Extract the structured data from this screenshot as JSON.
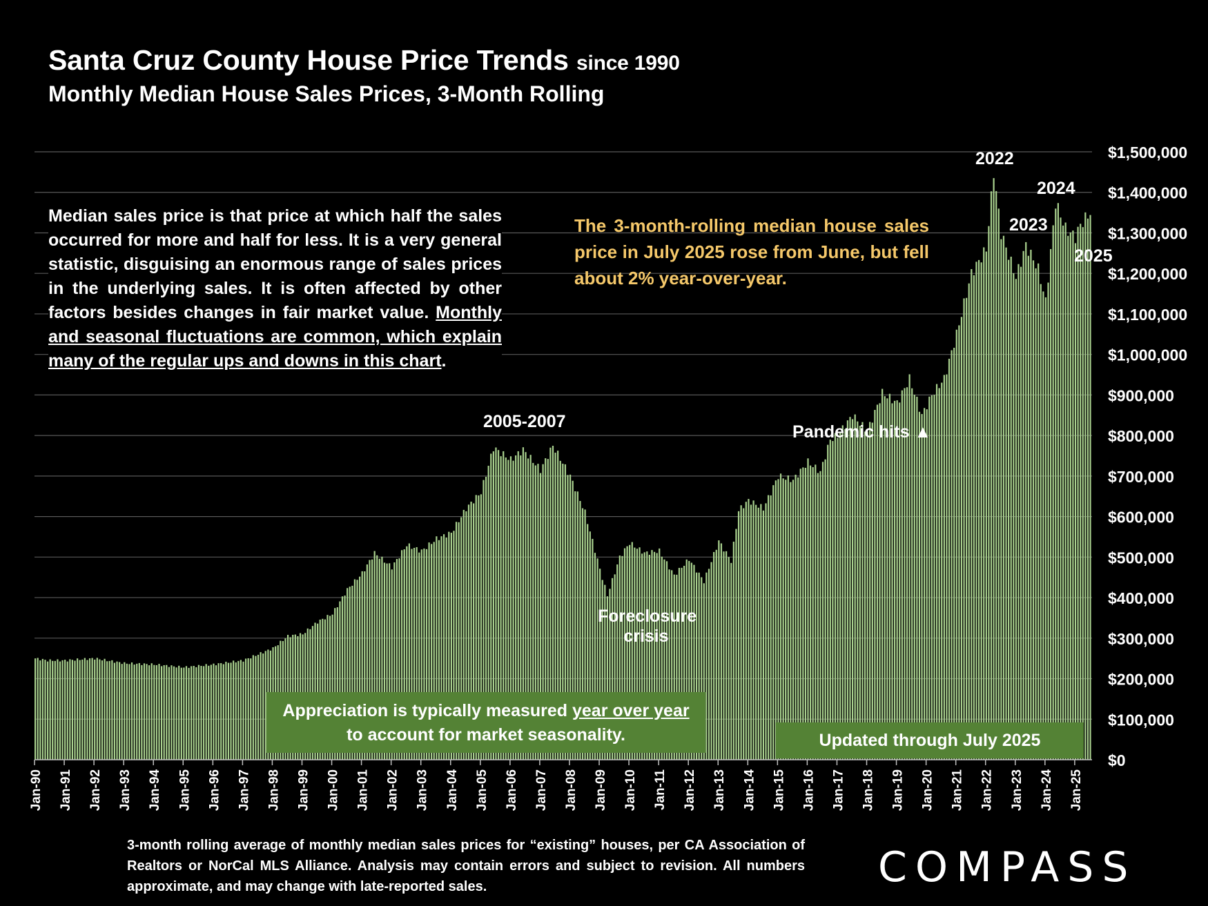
{
  "header": {
    "title": "Santa Cruz County House Price Trends",
    "title_suffix": "since 1990",
    "subtitle": "Monthly Median House Sales Prices, 3-Month Rolling"
  },
  "explanation": {
    "text": "Median sales price is that price at which half the sales occurred for more and half for less. It is a very general statistic, disguising an enormous range of sales prices in the underlying sales. It is often affected by other factors besides changes in fair market value.",
    "underlined": "Monthly and seasonal fluctuations are common, which explain many of the regular ups and downs in this chart",
    "end": "."
  },
  "callout": "The 3-month-rolling median house sales price in July 2025 rose from June, but fell about 2% year-over-year.",
  "boxes": {
    "appreciation_pre": "Appreciation is typically measured ",
    "appreciation_u": "year over year",
    "appreciation_post": "to account for market seasonality.",
    "updated": "Updated through July 2025"
  },
  "footnote": "3-month rolling average of monthly median sales prices for “existing” houses, per CA Association of Realtors or NorCal MLS Alliance. Analysis may contain errors and subject to revision. All numbers approximate, and may change with late-reported sales.",
  "logo": "COMPASS",
  "colors": {
    "bar": "#a9d18e",
    "bar_edge": "#70ad47",
    "box": "#548235",
    "callout": "#f5c86a",
    "grid": "#595959"
  },
  "chart_data": {
    "type": "bar",
    "title": "Santa Cruz County House Price Trends since 1990",
    "xlabel": "",
    "ylabel": "",
    "ylim": [
      0,
      1500000
    ],
    "y_ticks": [
      0,
      100000,
      200000,
      300000,
      400000,
      500000,
      600000,
      700000,
      800000,
      900000,
      1000000,
      1100000,
      1200000,
      1300000,
      1400000,
      1500000
    ],
    "y_tick_labels": [
      "$0",
      "$100,000",
      "$200,000",
      "$300,000",
      "$400,000",
      "$500,000",
      "$600,000",
      "$700,000",
      "$800,000",
      "$900,000",
      "$1,000,000",
      "$1,100,000",
      "$1,200,000",
      "$1,300,000",
      "$1,400,000",
      "$1,500,000"
    ],
    "x_tick_labels": [
      "Jan-90",
      "Jan-91",
      "Jan-92",
      "Jan-93",
      "Jan-94",
      "Jan-95",
      "Jan-96",
      "Jan-97",
      "Jan-98",
      "Jan-99",
      "Jan-00",
      "Jan-01",
      "Jan-02",
      "Jan-03",
      "Jan-04",
      "Jan-05",
      "Jan-06",
      "Jan-07",
      "Jan-08",
      "Jan-09",
      "Jan-10",
      "Jan-11",
      "Jan-12",
      "Jan-13",
      "Jan-14",
      "Jan-15",
      "Jan-16",
      "Jan-17",
      "Jan-18",
      "Jan-19",
      "Jan-20",
      "Jan-21",
      "Jan-22",
      "Jan-23",
      "Jan-24",
      "Jan-25"
    ],
    "start": "Jan-90",
    "end": "Jul-25",
    "anchors": [
      [
        "1990-01",
        250000
      ],
      [
        "1990-06",
        245000
      ],
      [
        "1991-01",
        245000
      ],
      [
        "1992-01",
        250000
      ],
      [
        "1993-01",
        238000
      ],
      [
        "1994-01",
        235000
      ],
      [
        "1995-01",
        228000
      ],
      [
        "1996-01",
        235000
      ],
      [
        "1997-01",
        245000
      ],
      [
        "1997-07",
        260000
      ],
      [
        "1998-01",
        275000
      ],
      [
        "1998-07",
        305000
      ],
      [
        "1999-01",
        310000
      ],
      [
        "1999-07",
        340000
      ],
      [
        "2000-01",
        360000
      ],
      [
        "2000-07",
        420000
      ],
      [
        "2001-01",
        460000
      ],
      [
        "2001-06",
        510000
      ],
      [
        "2002-01",
        475000
      ],
      [
        "2002-07",
        530000
      ],
      [
        "2003-01",
        515000
      ],
      [
        "2003-07",
        545000
      ],
      [
        "2004-01",
        560000
      ],
      [
        "2004-07",
        620000
      ],
      [
        "2005-01",
        660000
      ],
      [
        "2005-06",
        770000
      ],
      [
        "2006-01",
        740000
      ],
      [
        "2006-06",
        765000
      ],
      [
        "2007-01",
        715000
      ],
      [
        "2007-06",
        775000
      ],
      [
        "2008-01",
        700000
      ],
      [
        "2008-07",
        610000
      ],
      [
        "2009-01",
        470000
      ],
      [
        "2009-04",
        405000
      ],
      [
        "2009-09",
        500000
      ],
      [
        "2010-01",
        535000
      ],
      [
        "2010-07",
        510000
      ],
      [
        "2011-01",
        515000
      ],
      [
        "2011-07",
        455000
      ],
      [
        "2012-01",
        495000
      ],
      [
        "2012-07",
        440000
      ],
      [
        "2013-01",
        540000
      ],
      [
        "2013-06",
        490000
      ],
      [
        "2013-09",
        615000
      ],
      [
        "2014-01",
        640000
      ],
      [
        "2014-07",
        620000
      ],
      [
        "2015-01",
        700000
      ],
      [
        "2015-07",
        690000
      ],
      [
        "2016-01",
        735000
      ],
      [
        "2016-06",
        710000
      ],
      [
        "2016-10",
        790000
      ],
      [
        "2017-01",
        800000
      ],
      [
        "2017-07",
        850000
      ],
      [
        "2018-01",
        810000
      ],
      [
        "2018-07",
        905000
      ],
      [
        "2019-01",
        880000
      ],
      [
        "2019-06",
        940000
      ],
      [
        "2019-11",
        850000
      ],
      [
        "2020-03",
        900000
      ],
      [
        "2020-08",
        940000
      ],
      [
        "2021-01",
        1050000
      ],
      [
        "2021-07",
        1200000
      ],
      [
        "2022-01",
        1260000
      ],
      [
        "2022-04",
        1450000
      ],
      [
        "2022-07",
        1300000
      ],
      [
        "2023-01",
        1190000
      ],
      [
        "2023-05",
        1270000
      ],
      [
        "2023-10",
        1210000
      ],
      [
        "2024-01",
        1130000
      ],
      [
        "2024-05",
        1375000
      ],
      [
        "2024-09",
        1310000
      ],
      [
        "2025-01",
        1290000
      ],
      [
        "2025-03",
        1320000
      ],
      [
        "2025-07",
        1350000
      ]
    ],
    "annotations": {
      "peak_2005": "2005-2007",
      "foreclosure_1": "Foreclosure",
      "foreclosure_2": "crisis",
      "pandemic": "Pandemic hits",
      "y2022": "2022",
      "y2023": "2023",
      "y2024": "2024",
      "y2025": "2025"
    }
  }
}
